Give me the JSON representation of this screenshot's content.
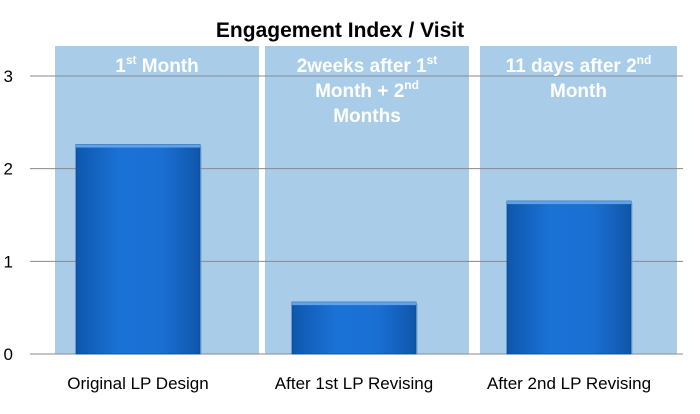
{
  "chart_data": {
    "type": "bar",
    "title": "Engagement Index / Visit",
    "categories": [
      "Original LP Design",
      "After 1st LP Revising",
      "After 2nd LP Revising"
    ],
    "values": [
      2.26,
      0.56,
      1.65
    ],
    "ylim": [
      0,
      3
    ],
    "yticks": [
      "0",
      "1",
      "2",
      "3"
    ],
    "grid": true,
    "bar_color": "#1565c8",
    "band_color": "#a9cde8",
    "annotations": [
      {
        "lines": [
          [
            "1",
            "st",
            " Month"
          ]
        ]
      },
      {
        "lines": [
          [
            "2weeks after 1",
            "st",
            ""
          ],
          [
            "Month + 2",
            "nd",
            ""
          ],
          [
            "Months",
            "",
            ""
          ]
        ]
      },
      {
        "lines": [
          [
            "11 days after 2",
            "nd",
            ""
          ],
          [
            "Month",
            "",
            ""
          ]
        ]
      }
    ]
  }
}
